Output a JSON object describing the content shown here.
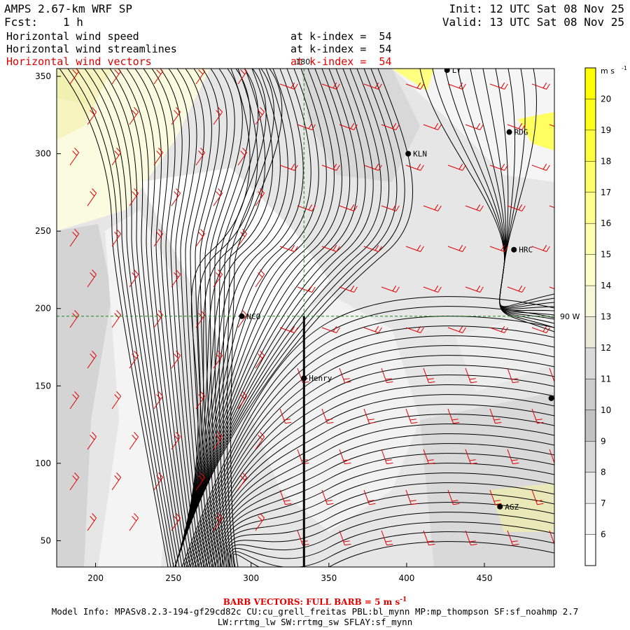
{
  "header": {
    "model_title": "AMPS 2.67-km WRF SP",
    "fcst_label": "Fcst:",
    "fcst_value": "1 h",
    "init": "Init: 12 UTC Sat 08 Nov 25",
    "valid": "Valid: 13 UTC Sat 08 Nov 25",
    "fields": [
      {
        "name": "Horizontal wind speed",
        "level": "at k-index =  54",
        "color": "#000000"
      },
      {
        "name": "Horizontal wind streamlines",
        "level": "at k-index =  54",
        "color": "#000000"
      },
      {
        "name": "Horizontal wind vectors",
        "level": "at k-index =  54",
        "color": "#e00000"
      }
    ]
  },
  "map": {
    "x_ticks": [
      200,
      250,
      300,
      350,
      400,
      450
    ],
    "y_ticks": [
      50,
      100,
      150,
      200,
      250,
      300,
      350
    ],
    "x_range": [
      175,
      495
    ],
    "y_range": [
      33,
      355
    ],
    "meridian_label": "180",
    "meridian_x": 334,
    "parallel_label": "90 W",
    "parallel_y": 195,
    "cross_section_x": 334,
    "stations": [
      {
        "id": "NCO",
        "x": 294,
        "y": 195
      },
      {
        "id": "Henry",
        "x": 334,
        "y": 155
      },
      {
        "id": "KLN",
        "x": 401,
        "y": 300
      },
      {
        "id": "RDG",
        "x": 466,
        "y": 314
      },
      {
        "id": "HRC",
        "x": 469,
        "y": 238
      },
      {
        "id": "AGZ",
        "x": 460,
        "y": 72
      },
      {
        "id": "LY",
        "x": 426,
        "y": 354
      },
      {
        "id": "",
        "x": 493,
        "y": 142
      }
    ]
  },
  "colorbar": {
    "unit": "m s",
    "unit_exp": "-1",
    "labels": [
      20,
      19,
      18,
      17,
      16,
      15,
      14,
      13,
      12,
      11,
      10,
      9,
      8,
      7,
      6
    ],
    "colors": [
      "#ffff00",
      "#ffff1a",
      "#ffff40",
      "#ffff6a",
      "#ffff90",
      "#ffffb0",
      "#ffffcc",
      "#f6f6d8",
      "#eaeada",
      "#dadada",
      "#cccccc",
      "#c2c2c2",
      "#d8d8d8",
      "#ebebeb",
      "#f6f6f6",
      "#ffffff"
    ]
  },
  "footer": {
    "barb_note": "BARB VECTORS: FULL BARB = 5 m s",
    "barb_exp": "-1",
    "model_info": "Model Info: MPASv8.2.3-194-gf29cd82c CU:cu_grell_freitas PBL:bl_mynn MP:mp_thompson SF:sf_noahmp 2.7",
    "model_info2": "LW:rrtmg_lw SW:rrtmg_sw SFLAY:sf_mynn"
  }
}
